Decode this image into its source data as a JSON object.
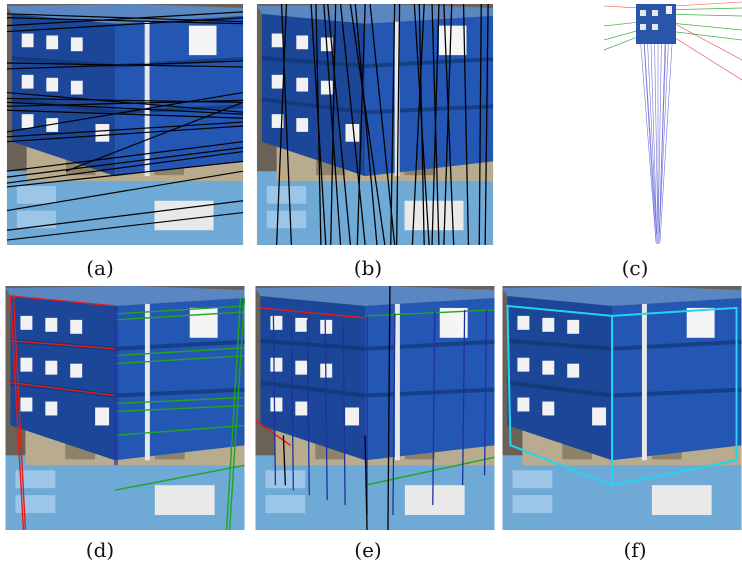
{
  "figure": {
    "panels": [
      {
        "id": "a",
        "caption": "(a)"
      },
      {
        "id": "b",
        "caption": "(b)"
      },
      {
        "id": "c",
        "caption": "(c)"
      },
      {
        "id": "d",
        "caption": "(d)"
      },
      {
        "id": "e",
        "caption": "(e)"
      },
      {
        "id": "f",
        "caption": "(f)"
      }
    ],
    "colors": {
      "crate_blue": "#1f4fa8",
      "crate_top": "#5a86c2",
      "background": "#6b6257",
      "pallet": "#b9ab8e",
      "lower_crates": "#6fa9d6",
      "line_black": "#000000",
      "line_red": "#e21b1b",
      "line_green": "#1fa51f",
      "line_blue": "#2030a0",
      "line_cyan": "#22d4f0",
      "sketch_blue": "#5b5bd6"
    }
  }
}
